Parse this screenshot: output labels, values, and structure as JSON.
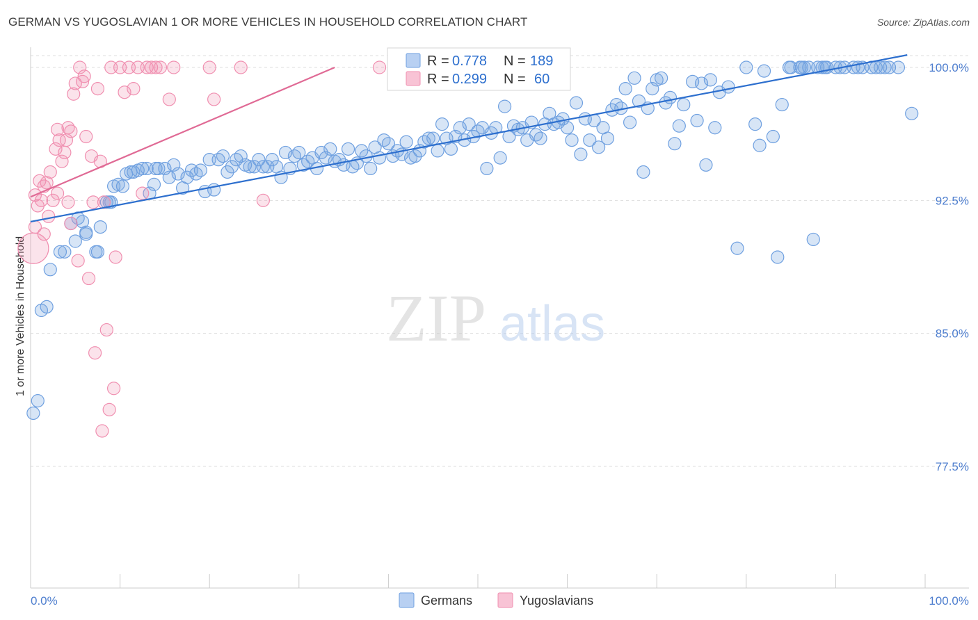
{
  "header": {
    "title": "GERMAN VS YUGOSLAVIAN 1 OR MORE VEHICLES IN HOUSEHOLD CORRELATION CHART",
    "source": "Source: ZipAtlas.com"
  },
  "watermark": {
    "zip": "ZIP",
    "atlas": "atlas"
  },
  "colors": {
    "germans": "#6fa0e0",
    "germans_line": "#2d6fce",
    "yugoslavians": "#f08fb0",
    "yugoslavians_line": "#e06a95",
    "tick_text": "#4f7fcf",
    "grid": "#dddddd"
  },
  "chart_data": {
    "type": "scatter",
    "xlabel": "",
    "ylabel": "1 or more Vehicles in Household",
    "xlim": [
      0,
      100
    ],
    "ylim": [
      70,
      101.5
    ],
    "x_tick_labels": [
      "0.0%",
      "100.0%"
    ],
    "y_ticks": [
      100.0,
      92.5,
      85.0,
      77.5
    ],
    "y_tick_labels": [
      "100.0%",
      "92.5%",
      "85.0%",
      "77.5%"
    ],
    "grid": true,
    "legend_top": [
      {
        "r_label": "R =",
        "r_value": "0.778",
        "n_label": "N =",
        "n_value": "189"
      },
      {
        "r_label": "R =",
        "r_value": "0.299",
        "n_label": "N =",
        "n_value": "60"
      }
    ],
    "legend_bottom": [
      "Germans",
      "Yugoslavians"
    ],
    "series": [
      {
        "name": "Germans",
        "trendline": {
          "x": [
            0,
            98
          ],
          "y": [
            91.3,
            100.7
          ]
        },
        "points": [
          [
            0.3,
            80.5
          ],
          [
            0.8,
            81.2
          ],
          [
            1.2,
            86.3
          ],
          [
            1.8,
            86.5
          ],
          [
            2.2,
            88.6
          ],
          [
            3.3,
            89.6
          ],
          [
            3.8,
            89.6
          ],
          [
            4.5,
            91.2
          ],
          [
            5.0,
            90.2
          ],
          [
            5.3,
            91.5
          ],
          [
            5.8,
            91.3
          ],
          [
            6.2,
            90.6
          ],
          [
            6.2,
            90.7
          ],
          [
            7.3,
            89.6
          ],
          [
            7.5,
            89.6
          ],
          [
            7.8,
            91.0
          ],
          [
            8.5,
            92.4
          ],
          [
            8.8,
            92.4
          ],
          [
            9.0,
            92.4
          ],
          [
            9.3,
            93.3
          ],
          [
            9.8,
            93.4
          ],
          [
            10.3,
            93.3
          ],
          [
            10.7,
            94.0
          ],
          [
            11.2,
            94.1
          ],
          [
            11.5,
            94.1
          ],
          [
            12.0,
            94.2
          ],
          [
            12.5,
            94.3
          ],
          [
            13.0,
            94.3
          ],
          [
            13.3,
            92.9
          ],
          [
            13.8,
            93.4
          ],
          [
            14.0,
            94.3
          ],
          [
            14.3,
            94.3
          ],
          [
            15.0,
            94.3
          ],
          [
            15.5,
            93.8
          ],
          [
            16.0,
            94.5
          ],
          [
            16.5,
            94.0
          ],
          [
            17.0,
            93.2
          ],
          [
            17.5,
            93.8
          ],
          [
            18.0,
            94.2
          ],
          [
            18.5,
            94.0
          ],
          [
            19.0,
            94.2
          ],
          [
            19.5,
            93.0
          ],
          [
            20.0,
            94.8
          ],
          [
            20.5,
            93.1
          ],
          [
            21.0,
            94.8
          ],
          [
            21.5,
            95.0
          ],
          [
            22.0,
            94.1
          ],
          [
            22.5,
            94.4
          ],
          [
            23.0,
            94.8
          ],
          [
            23.5,
            95.0
          ],
          [
            24.0,
            94.5
          ],
          [
            24.5,
            94.4
          ],
          [
            25.0,
            94.4
          ],
          [
            25.5,
            94.8
          ],
          [
            26.0,
            94.4
          ],
          [
            26.5,
            94.4
          ],
          [
            27.0,
            94.8
          ],
          [
            27.5,
            94.4
          ],
          [
            28.0,
            93.8
          ],
          [
            28.5,
            95.2
          ],
          [
            29.0,
            94.3
          ],
          [
            29.5,
            95.0
          ],
          [
            30.0,
            95.2
          ],
          [
            30.5,
            94.5
          ],
          [
            31.0,
            94.7
          ],
          [
            31.5,
            94.9
          ],
          [
            32.0,
            94.3
          ],
          [
            32.5,
            95.2
          ],
          [
            33.0,
            94.9
          ],
          [
            33.5,
            95.4
          ],
          [
            34.0,
            94.7
          ],
          [
            34.5,
            94.8
          ],
          [
            35.0,
            94.5
          ],
          [
            35.5,
            95.4
          ],
          [
            36.0,
            94.4
          ],
          [
            36.5,
            94.6
          ],
          [
            37.0,
            95.3
          ],
          [
            37.5,
            95.0
          ],
          [
            38.0,
            94.3
          ],
          [
            38.5,
            95.5
          ],
          [
            39.0,
            94.9
          ],
          [
            39.5,
            95.9
          ],
          [
            40.0,
            95.7
          ],
          [
            40.5,
            95.0
          ],
          [
            41.0,
            95.3
          ],
          [
            41.5,
            95.1
          ],
          [
            42.0,
            95.8
          ],
          [
            42.5,
            94.9
          ],
          [
            43.0,
            95.0
          ],
          [
            43.5,
            95.3
          ],
          [
            44.0,
            95.8
          ],
          [
            44.5,
            96.0
          ],
          [
            45.0,
            96.0
          ],
          [
            45.5,
            95.3
          ],
          [
            46.0,
            96.8
          ],
          [
            46.5,
            96.0
          ],
          [
            47.0,
            95.4
          ],
          [
            47.5,
            96.1
          ],
          [
            48.0,
            96.6
          ],
          [
            48.5,
            95.9
          ],
          [
            49.0,
            96.8
          ],
          [
            49.5,
            96.1
          ],
          [
            50.0,
            96.4
          ],
          [
            50.5,
            96.6
          ],
          [
            51.0,
            94.3
          ],
          [
            51.5,
            96.3
          ],
          [
            52.0,
            96.6
          ],
          [
            52.5,
            94.9
          ],
          [
            53.0,
            97.8
          ],
          [
            53.5,
            96.1
          ],
          [
            54.0,
            96.7
          ],
          [
            54.5,
            96.5
          ],
          [
            55.0,
            96.6
          ],
          [
            55.5,
            95.9
          ],
          [
            56.0,
            96.9
          ],
          [
            56.5,
            96.2
          ],
          [
            57.0,
            96.0
          ],
          [
            57.5,
            96.8
          ],
          [
            58.0,
            97.4
          ],
          [
            58.5,
            96.8
          ],
          [
            59.0,
            96.9
          ],
          [
            59.5,
            97.1
          ],
          [
            60.0,
            96.6
          ],
          [
            60.5,
            95.9
          ],
          [
            61.0,
            98.0
          ],
          [
            61.5,
            95.1
          ],
          [
            62.0,
            97.1
          ],
          [
            62.5,
            95.9
          ],
          [
            63.0,
            97.0
          ],
          [
            63.5,
            95.5
          ],
          [
            64.0,
            96.6
          ],
          [
            64.5,
            96.0
          ],
          [
            65.0,
            97.6
          ],
          [
            65.5,
            97.9
          ],
          [
            66.0,
            97.7
          ],
          [
            66.5,
            98.8
          ],
          [
            67.0,
            96.9
          ],
          [
            67.5,
            99.4
          ],
          [
            68.0,
            98.1
          ],
          [
            68.5,
            94.1
          ],
          [
            69.0,
            97.7
          ],
          [
            69.5,
            98.8
          ],
          [
            70.0,
            99.3
          ],
          [
            70.5,
            99.4
          ],
          [
            71.0,
            98.0
          ],
          [
            71.5,
            98.3
          ],
          [
            72.0,
            95.7
          ],
          [
            72.5,
            96.7
          ],
          [
            73.0,
            97.9
          ],
          [
            74.0,
            99.2
          ],
          [
            74.5,
            97.0
          ],
          [
            75.0,
            99.1
          ],
          [
            75.5,
            94.5
          ],
          [
            76.0,
            99.3
          ],
          [
            76.5,
            96.6
          ],
          [
            77.0,
            98.6
          ],
          [
            78.0,
            98.9
          ],
          [
            79.0,
            89.8
          ],
          [
            80.0,
            100.0
          ],
          [
            81.0,
            96.8
          ],
          [
            81.5,
            95.6
          ],
          [
            82.0,
            99.8
          ],
          [
            83.0,
            96.1
          ],
          [
            83.5,
            89.3
          ],
          [
            84.0,
            97.9
          ],
          [
            85.0,
            100.0
          ],
          [
            86.0,
            100.0
          ],
          [
            86.5,
            100.0
          ],
          [
            87.0,
            100.0
          ],
          [
            87.5,
            90.3
          ],
          [
            88.0,
            100.0
          ],
          [
            88.5,
            100.0
          ],
          [
            89.0,
            100.0
          ],
          [
            90.0,
            100.0
          ],
          [
            91.0,
            100.0
          ],
          [
            92.0,
            100.0
          ],
          [
            93.0,
            100.0
          ],
          [
            94.0,
            100.0
          ],
          [
            95.0,
            100.0
          ],
          [
            96.0,
            100.0
          ],
          [
            97.0,
            100.0
          ],
          [
            98.5,
            97.4
          ],
          [
            92.5,
            100.0
          ],
          [
            90.5,
            100.0
          ],
          [
            88.8,
            100.0
          ],
          [
            94.5,
            100.0
          ],
          [
            86.2,
            100.0
          ],
          [
            84.8,
            100.0
          ],
          [
            95.5,
            100.0
          ]
        ]
      },
      {
        "name": "Yugoslavians",
        "trendline": {
          "x": [
            0,
            34
          ],
          "y": [
            92.7,
            100.0
          ]
        },
        "points": [
          [
            0.3,
            89.8
          ],
          [
            0.5,
            91.0
          ],
          [
            0.5,
            92.8
          ],
          [
            0.8,
            92.2
          ],
          [
            1.0,
            93.6
          ],
          [
            1.2,
            92.5
          ],
          [
            1.5,
            93.3
          ],
          [
            1.5,
            90.6
          ],
          [
            1.8,
            93.5
          ],
          [
            2.0,
            91.6
          ],
          [
            2.2,
            94.1
          ],
          [
            2.5,
            92.5
          ],
          [
            2.8,
            95.4
          ],
          [
            3.0,
            96.5
          ],
          [
            3.0,
            92.9
          ],
          [
            3.2,
            95.9
          ],
          [
            3.5,
            94.7
          ],
          [
            3.8,
            95.2
          ],
          [
            4.0,
            95.9
          ],
          [
            4.2,
            96.6
          ],
          [
            4.2,
            92.4
          ],
          [
            4.5,
            96.4
          ],
          [
            4.5,
            91.2
          ],
          [
            4.8,
            98.5
          ],
          [
            5.0,
            99.1
          ],
          [
            5.3,
            89.1
          ],
          [
            5.5,
            100.0
          ],
          [
            5.8,
            99.2
          ],
          [
            6.0,
            99.5
          ],
          [
            6.2,
            96.1
          ],
          [
            6.5,
            88.1
          ],
          [
            6.8,
            95.0
          ],
          [
            7.0,
            92.4
          ],
          [
            7.2,
            83.9
          ],
          [
            7.5,
            98.8
          ],
          [
            7.8,
            94.7
          ],
          [
            8.0,
            79.5
          ],
          [
            8.2,
            92.4
          ],
          [
            8.5,
            85.2
          ],
          [
            8.8,
            80.7
          ],
          [
            9.0,
            100.0
          ],
          [
            9.3,
            81.9
          ],
          [
            9.5,
            89.3
          ],
          [
            10.0,
            100.0
          ],
          [
            10.5,
            98.6
          ],
          [
            11.0,
            100.0
          ],
          [
            11.5,
            98.8
          ],
          [
            12.0,
            100.0
          ],
          [
            12.5,
            92.9
          ],
          [
            13.0,
            100.0
          ],
          [
            13.5,
            100.0
          ],
          [
            14.0,
            100.0
          ],
          [
            15.5,
            98.2
          ],
          [
            16.0,
            100.0
          ],
          [
            20.0,
            100.0
          ],
          [
            20.5,
            98.2
          ],
          [
            23.5,
            100.0
          ],
          [
            26.0,
            92.5
          ],
          [
            39.0,
            100.0
          ],
          [
            14.5,
            100.0
          ]
        ]
      }
    ]
  }
}
